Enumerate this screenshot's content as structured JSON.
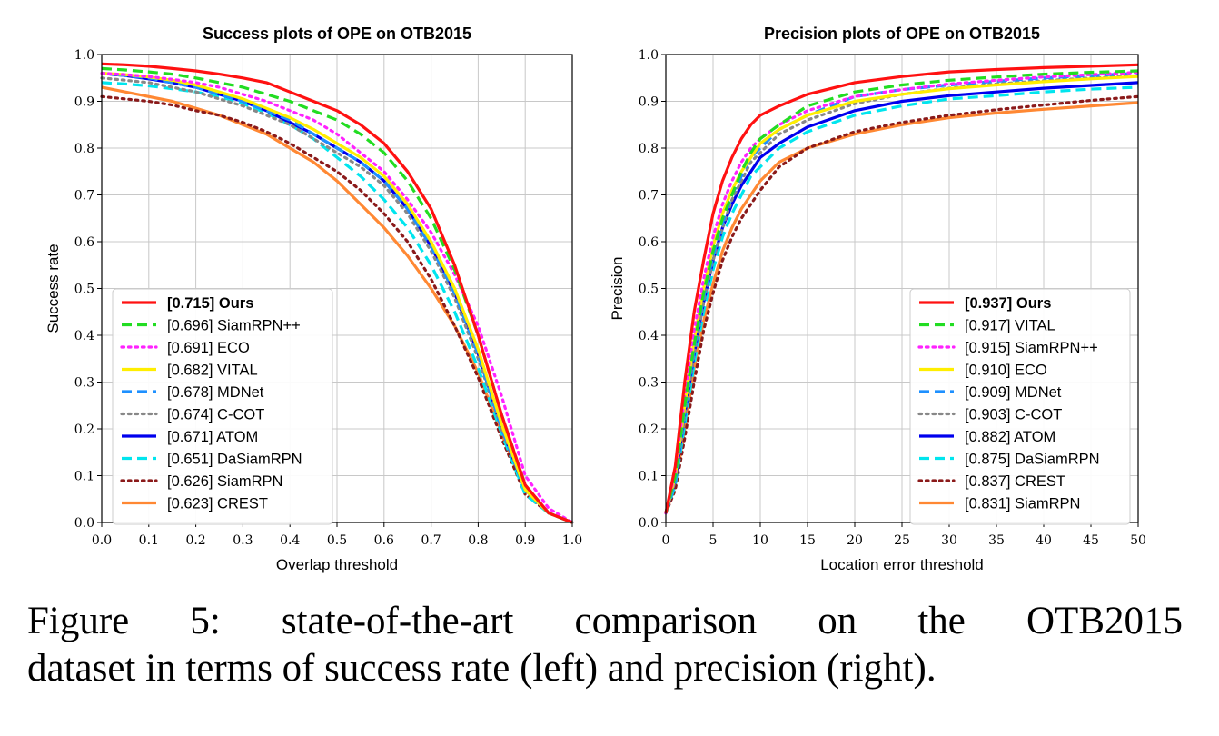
{
  "figure": {
    "caption_line1": "Figure 5: state-of-the-art comparison on the OTB2015",
    "caption_line2": "dataset in terms of success rate (left) and precision (right)."
  },
  "chart_data": [
    {
      "type": "line",
      "title": "Success plots of OPE on OTB2015",
      "xlabel": "Overlap threshold",
      "ylabel": "Success rate",
      "xlim": [
        0,
        1
      ],
      "ylim": [
        0,
        1
      ],
      "xticks": [
        "0.0",
        "0.1",
        "0.2",
        "0.3",
        "0.4",
        "0.5",
        "0.6",
        "0.7",
        "0.8",
        "0.9",
        "1.0"
      ],
      "yticks": [
        "0.0",
        "0.1",
        "0.2",
        "0.3",
        "0.4",
        "0.5",
        "0.6",
        "0.7",
        "0.8",
        "0.9",
        "1.0"
      ],
      "grid": true,
      "legend_position": "lower-left",
      "x": [
        0,
        0.05,
        0.1,
        0.15,
        0.2,
        0.25,
        0.3,
        0.35,
        0.4,
        0.45,
        0.5,
        0.55,
        0.6,
        0.65,
        0.7,
        0.75,
        0.8,
        0.85,
        0.9,
        0.95,
        1.0
      ],
      "series": [
        {
          "name": "[0.715] Ours",
          "bold": true,
          "color": "#ff1111",
          "dash": "solid",
          "values": [
            0.98,
            0.978,
            0.975,
            0.97,
            0.965,
            0.958,
            0.95,
            0.94,
            0.92,
            0.9,
            0.88,
            0.85,
            0.81,
            0.75,
            0.67,
            0.55,
            0.4,
            0.23,
            0.08,
            0.02,
            0.0
          ]
        },
        {
          "name": "[0.696] SiamRPN++",
          "bold": false,
          "color": "#22dd22",
          "dash": "dashed",
          "values": [
            0.97,
            0.967,
            0.963,
            0.958,
            0.95,
            0.94,
            0.93,
            0.915,
            0.9,
            0.88,
            0.86,
            0.83,
            0.79,
            0.73,
            0.65,
            0.54,
            0.4,
            0.23,
            0.08,
            0.02,
            0.0
          ]
        },
        {
          "name": "[0.691] ECO",
          "bold": false,
          "color": "#ff22ff",
          "dash": "dotted",
          "values": [
            0.96,
            0.957,
            0.953,
            0.947,
            0.94,
            0.93,
            0.915,
            0.9,
            0.88,
            0.86,
            0.83,
            0.79,
            0.75,
            0.69,
            0.62,
            0.53,
            0.42,
            0.27,
            0.1,
            0.03,
            0.0
          ]
        },
        {
          "name": "[0.682] VITAL",
          "bold": false,
          "color": "#ffee00",
          "dash": "solid",
          "values": [
            0.96,
            0.957,
            0.952,
            0.945,
            0.935,
            0.92,
            0.905,
            0.885,
            0.865,
            0.84,
            0.81,
            0.78,
            0.74,
            0.68,
            0.6,
            0.5,
            0.37,
            0.21,
            0.07,
            0.02,
            0.0
          ]
        },
        {
          "name": "[0.678] MDNet",
          "bold": false,
          "color": "#1e90ff",
          "dash": "dashed",
          "values": [
            0.96,
            0.955,
            0.95,
            0.94,
            0.93,
            0.915,
            0.9,
            0.88,
            0.86,
            0.83,
            0.8,
            0.77,
            0.73,
            0.67,
            0.59,
            0.49,
            0.36,
            0.2,
            0.07,
            0.02,
            0.0
          ]
        },
        {
          "name": "[0.674] C-COT",
          "bold": false,
          "color": "#888888",
          "dash": "dotted",
          "values": [
            0.95,
            0.945,
            0.94,
            0.93,
            0.92,
            0.905,
            0.89,
            0.87,
            0.85,
            0.82,
            0.79,
            0.76,
            0.72,
            0.66,
            0.58,
            0.48,
            0.35,
            0.2,
            0.07,
            0.02,
            0.0
          ]
        },
        {
          "name": "[0.671] ATOM",
          "bold": false,
          "color": "#0000ee",
          "dash": "solid",
          "values": [
            0.96,
            0.955,
            0.948,
            0.94,
            0.93,
            0.915,
            0.9,
            0.88,
            0.855,
            0.83,
            0.8,
            0.77,
            0.73,
            0.67,
            0.59,
            0.49,
            0.36,
            0.2,
            0.07,
            0.02,
            0.0
          ]
        },
        {
          "name": "[0.651] DaSiamRPN",
          "bold": false,
          "color": "#00e5ee",
          "dash": "dashed",
          "values": [
            0.94,
            0.937,
            0.933,
            0.927,
            0.92,
            0.91,
            0.895,
            0.875,
            0.85,
            0.82,
            0.78,
            0.74,
            0.69,
            0.63,
            0.55,
            0.45,
            0.33,
            0.19,
            0.06,
            0.02,
            0.0
          ]
        },
        {
          "name": "[0.626] SiamRPN",
          "bold": false,
          "color": "#8b1a1a",
          "dash": "dotted",
          "values": [
            0.91,
            0.905,
            0.9,
            0.892,
            0.88,
            0.87,
            0.855,
            0.835,
            0.81,
            0.78,
            0.75,
            0.71,
            0.66,
            0.6,
            0.52,
            0.42,
            0.31,
            0.18,
            0.06,
            0.02,
            0.0
          ]
        },
        {
          "name": "[0.623] CREST",
          "bold": false,
          "color": "#ff8833",
          "dash": "solid",
          "values": [
            0.93,
            0.92,
            0.91,
            0.9,
            0.885,
            0.87,
            0.85,
            0.83,
            0.8,
            0.77,
            0.73,
            0.68,
            0.63,
            0.57,
            0.5,
            0.42,
            0.32,
            0.19,
            0.07,
            0.02,
            0.0
          ]
        }
      ]
    },
    {
      "type": "line",
      "title": "Precision plots of OPE on OTB2015",
      "xlabel": "Location error threshold",
      "ylabel": "Precision",
      "xlim": [
        0,
        50
      ],
      "ylim": [
        0,
        1
      ],
      "xticks": [
        "0",
        "5",
        "10",
        "15",
        "20",
        "25",
        "30",
        "35",
        "40",
        "45",
        "50"
      ],
      "yticks": [
        "0.0",
        "0.1",
        "0.2",
        "0.3",
        "0.4",
        "0.5",
        "0.6",
        "0.7",
        "0.8",
        "0.9",
        "1.0"
      ],
      "grid": true,
      "legend_position": "lower-right",
      "x": [
        0,
        1,
        2,
        3,
        4,
        5,
        6,
        7,
        8,
        9,
        10,
        12,
        15,
        20,
        25,
        30,
        35,
        40,
        45,
        50
      ],
      "series": [
        {
          "name": "[0.937] Ours",
          "bold": true,
          "color": "#ff1111",
          "dash": "solid",
          "values": [
            0.02,
            0.12,
            0.3,
            0.45,
            0.56,
            0.66,
            0.73,
            0.78,
            0.82,
            0.85,
            0.87,
            0.89,
            0.915,
            0.94,
            0.953,
            0.963,
            0.968,
            0.972,
            0.975,
            0.978
          ]
        },
        {
          "name": "[0.917] VITAL",
          "bold": false,
          "color": "#22dd22",
          "dash": "dashed",
          "values": [
            0.02,
            0.1,
            0.25,
            0.38,
            0.49,
            0.58,
            0.65,
            0.7,
            0.75,
            0.79,
            0.82,
            0.85,
            0.89,
            0.92,
            0.935,
            0.945,
            0.952,
            0.958,
            0.962,
            0.965
          ]
        },
        {
          "name": "[0.915] SiamRPN++",
          "bold": false,
          "color": "#ff22ff",
          "dash": "dotted",
          "values": [
            0.02,
            0.11,
            0.27,
            0.41,
            0.52,
            0.61,
            0.68,
            0.73,
            0.77,
            0.8,
            0.82,
            0.85,
            0.88,
            0.91,
            0.925,
            0.937,
            0.945,
            0.952,
            0.957,
            0.962
          ]
        },
        {
          "name": "[0.910] ECO",
          "bold": false,
          "color": "#ffee00",
          "dash": "solid",
          "values": [
            0.02,
            0.1,
            0.25,
            0.39,
            0.5,
            0.59,
            0.66,
            0.71,
            0.75,
            0.78,
            0.81,
            0.84,
            0.87,
            0.9,
            0.915,
            0.927,
            0.935,
            0.942,
            0.948,
            0.953
          ]
        },
        {
          "name": "[0.909] MDNet",
          "bold": false,
          "color": "#1e90ff",
          "dash": "dashed",
          "values": [
            0.02,
            0.09,
            0.24,
            0.37,
            0.48,
            0.57,
            0.64,
            0.7,
            0.74,
            0.78,
            0.8,
            0.84,
            0.87,
            0.91,
            0.925,
            0.935,
            0.943,
            0.95,
            0.955,
            0.96
          ]
        },
        {
          "name": "[0.903] C-COT",
          "bold": false,
          "color": "#888888",
          "dash": "dotted",
          "values": [
            0.02,
            0.09,
            0.23,
            0.36,
            0.47,
            0.56,
            0.63,
            0.69,
            0.73,
            0.77,
            0.79,
            0.83,
            0.86,
            0.895,
            0.915,
            0.928,
            0.937,
            0.944,
            0.95,
            0.955
          ]
        },
        {
          "name": "[0.882] ATOM",
          "bold": false,
          "color": "#0000ee",
          "dash": "solid",
          "values": [
            0.02,
            0.09,
            0.23,
            0.36,
            0.47,
            0.56,
            0.63,
            0.68,
            0.72,
            0.75,
            0.78,
            0.81,
            0.845,
            0.88,
            0.9,
            0.912,
            0.92,
            0.928,
            0.934,
            0.94
          ]
        },
        {
          "name": "[0.875] DaSiamRPN",
          "bold": false,
          "color": "#00e5ee",
          "dash": "dashed",
          "values": [
            0.02,
            0.08,
            0.21,
            0.34,
            0.45,
            0.54,
            0.61,
            0.66,
            0.7,
            0.74,
            0.76,
            0.8,
            0.835,
            0.87,
            0.89,
            0.905,
            0.912,
            0.92,
            0.926,
            0.93
          ]
        },
        {
          "name": "[0.837] CREST",
          "bold": false,
          "color": "#8b1a1a",
          "dash": "dotted",
          "values": [
            0.02,
            0.07,
            0.18,
            0.3,
            0.41,
            0.49,
            0.56,
            0.61,
            0.65,
            0.68,
            0.71,
            0.76,
            0.8,
            0.835,
            0.855,
            0.87,
            0.882,
            0.892,
            0.902,
            0.91
          ]
        },
        {
          "name": "[0.831] SiamRPN",
          "bold": false,
          "color": "#ff8833",
          "dash": "solid",
          "values": [
            0.02,
            0.08,
            0.2,
            0.33,
            0.43,
            0.51,
            0.58,
            0.63,
            0.67,
            0.7,
            0.73,
            0.77,
            0.8,
            0.83,
            0.85,
            0.865,
            0.875,
            0.883,
            0.89,
            0.897
          ]
        }
      ]
    }
  ]
}
